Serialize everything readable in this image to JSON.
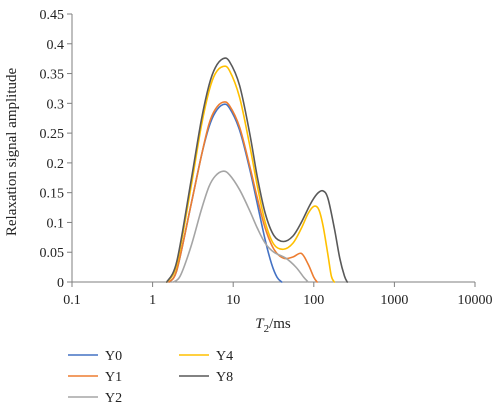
{
  "chart_data": {
    "type": "line",
    "title": "",
    "ylabel": "Relaxation signal amplitude",
    "xlabel": {
      "main": "T",
      "sub": "2",
      "unit": "/ms"
    },
    "xscale": "log",
    "xlim": [
      0.1,
      10000
    ],
    "ylim": [
      0,
      0.45
    ],
    "grid": false,
    "legend_position": "bottom-left",
    "xticks": [
      {
        "value": 0.1,
        "label": "0.1"
      },
      {
        "value": 1,
        "label": "1"
      },
      {
        "value": 10,
        "label": "10"
      },
      {
        "value": 100,
        "label": "100"
      },
      {
        "value": 1000,
        "label": "1000"
      },
      {
        "value": 10000,
        "label": "10000"
      }
    ],
    "yticks": [
      {
        "value": 0,
        "label": "0"
      },
      {
        "value": 0.05,
        "label": "0.05"
      },
      {
        "value": 0.1,
        "label": "0.1"
      },
      {
        "value": 0.15,
        "label": "0.15"
      },
      {
        "value": 0.2,
        "label": "0.2"
      },
      {
        "value": 0.25,
        "label": "0.25"
      },
      {
        "value": 0.3,
        "label": "0.3"
      },
      {
        "value": 0.35,
        "label": "0.35"
      },
      {
        "value": 0.4,
        "label": "0.4"
      },
      {
        "value": 0.45,
        "label": "0.45"
      }
    ],
    "series": [
      {
        "name": "Y0",
        "color": "#4472C4",
        "points": [
          [
            1.6,
            0
          ],
          [
            2.0,
            0.02
          ],
          [
            3.0,
            0.13
          ],
          [
            4.0,
            0.21
          ],
          [
            5.0,
            0.26
          ],
          [
            6.0,
            0.285
          ],
          [
            7.5,
            0.298
          ],
          [
            9.0,
            0.292
          ],
          [
            12.0,
            0.255
          ],
          [
            16.0,
            0.19
          ],
          [
            20.0,
            0.13
          ],
          [
            25.0,
            0.07
          ],
          [
            30.0,
            0.03
          ],
          [
            35.0,
            0.008
          ],
          [
            40.0,
            0
          ]
        ]
      },
      {
        "name": "Y1",
        "color": "#ED7D31",
        "points": [
          [
            1.6,
            0
          ],
          [
            2.0,
            0.02
          ],
          [
            3.0,
            0.13
          ],
          [
            4.0,
            0.21
          ],
          [
            5.0,
            0.265
          ],
          [
            6.0,
            0.29
          ],
          [
            7.5,
            0.302
          ],
          [
            9.0,
            0.296
          ],
          [
            12.0,
            0.26
          ],
          [
            16.0,
            0.195
          ],
          [
            20.0,
            0.14
          ],
          [
            25.0,
            0.09
          ],
          [
            32.0,
            0.055
          ],
          [
            42.0,
            0.04
          ],
          [
            55.0,
            0.042
          ],
          [
            70.0,
            0.048
          ],
          [
            85.0,
            0.03
          ],
          [
            100.0,
            0.008
          ],
          [
            110.0,
            0
          ]
        ]
      },
      {
        "name": "Y2",
        "color": "#A5A5A5",
        "points": [
          [
            1.8,
            0
          ],
          [
            2.2,
            0.01
          ],
          [
            3.0,
            0.06
          ],
          [
            4.0,
            0.12
          ],
          [
            5.0,
            0.16
          ],
          [
            6.0,
            0.178
          ],
          [
            7.5,
            0.186
          ],
          [
            9.0,
            0.18
          ],
          [
            12.0,
            0.155
          ],
          [
            16.0,
            0.12
          ],
          [
            20.0,
            0.09
          ],
          [
            25.0,
            0.065
          ],
          [
            32.0,
            0.05
          ],
          [
            45.0,
            0.04
          ],
          [
            60.0,
            0.025
          ],
          [
            75.0,
            0.008
          ],
          [
            85.0,
            0
          ]
        ]
      },
      {
        "name": "Y4",
        "color": "#FFC000",
        "points": [
          [
            1.5,
            0
          ],
          [
            2.0,
            0.03
          ],
          [
            3.0,
            0.16
          ],
          [
            4.0,
            0.26
          ],
          [
            5.0,
            0.32
          ],
          [
            6.0,
            0.35
          ],
          [
            7.5,
            0.362
          ],
          [
            9.0,
            0.355
          ],
          [
            12.0,
            0.31
          ],
          [
            16.0,
            0.23
          ],
          [
            20.0,
            0.16
          ],
          [
            25.0,
            0.1
          ],
          [
            32.0,
            0.063
          ],
          [
            42.0,
            0.055
          ],
          [
            55.0,
            0.065
          ],
          [
            70.0,
            0.09
          ],
          [
            85.0,
            0.115
          ],
          [
            100.0,
            0.127
          ],
          [
            115.0,
            0.122
          ],
          [
            130.0,
            0.095
          ],
          [
            150.0,
            0.045
          ],
          [
            165.0,
            0.01
          ],
          [
            180.0,
            0
          ]
        ]
      },
      {
        "name": "Y8",
        "color": "#595959",
        "points": [
          [
            1.5,
            0
          ],
          [
            2.0,
            0.035
          ],
          [
            3.0,
            0.17
          ],
          [
            4.0,
            0.27
          ],
          [
            5.0,
            0.33
          ],
          [
            6.0,
            0.36
          ],
          [
            7.5,
            0.375
          ],
          [
            9.0,
            0.37
          ],
          [
            12.0,
            0.33
          ],
          [
            16.0,
            0.25
          ],
          [
            20.0,
            0.175
          ],
          [
            25.0,
            0.115
          ],
          [
            32.0,
            0.078
          ],
          [
            42.0,
            0.068
          ],
          [
            55.0,
            0.077
          ],
          [
            70.0,
            0.1
          ],
          [
            90.0,
            0.13
          ],
          [
            110.0,
            0.148
          ],
          [
            130.0,
            0.153
          ],
          [
            150.0,
            0.14
          ],
          [
            180.0,
            0.09
          ],
          [
            210.0,
            0.04
          ],
          [
            240.0,
            0.01
          ],
          [
            260.0,
            0
          ]
        ]
      }
    ]
  }
}
